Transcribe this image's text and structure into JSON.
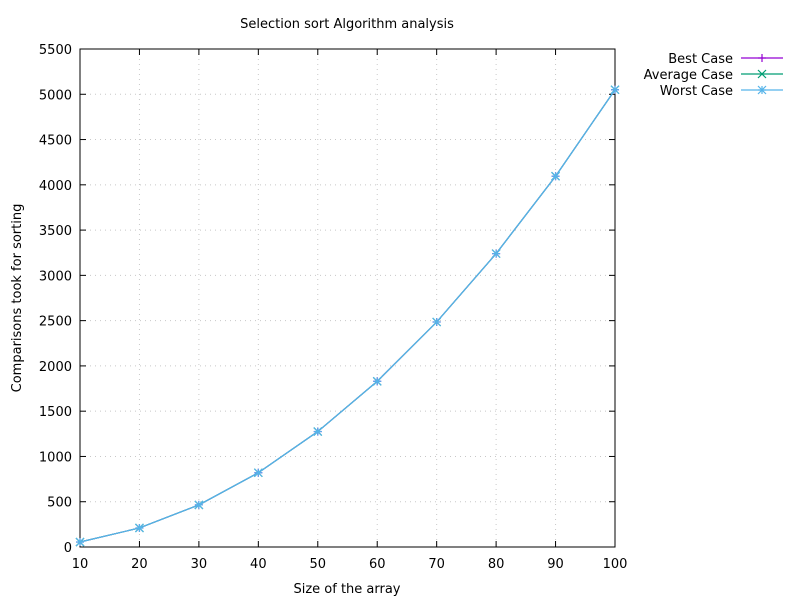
{
  "chart_data": {
    "type": "line",
    "title": "Selection sort Algorithm  analysis",
    "xlabel": "Size of the array",
    "ylabel": "Comparisons took for sorting",
    "x": [
      10,
      20,
      30,
      40,
      50,
      60,
      70,
      80,
      90,
      100
    ],
    "xlim": [
      10,
      100
    ],
    "ylim": [
      0,
      5500
    ],
    "x_ticks": [
      "10",
      "20",
      "30",
      "40",
      "50",
      "60",
      "70",
      "80",
      "90",
      "100"
    ],
    "y_ticks": [
      "0",
      "500",
      "1000",
      "1500",
      "2000",
      "2500",
      "3000",
      "3500",
      "4000",
      "4500",
      "5000",
      "5500"
    ],
    "x_tick_values": [
      10,
      20,
      30,
      40,
      50,
      60,
      70,
      80,
      90,
      100
    ],
    "y_tick_values": [
      0,
      500,
      1000,
      1500,
      2000,
      2500,
      3000,
      3500,
      4000,
      4500,
      5000,
      5500
    ],
    "grid": true,
    "legend_position": "outside-top-right",
    "series": [
      {
        "name": "Best Case",
        "color": "#9400d3",
        "marker": "plus",
        "values": [
          55,
          210,
          465,
          820,
          1275,
          1830,
          2485,
          3240,
          4095,
          5050
        ]
      },
      {
        "name": "Average Case",
        "color": "#009e73",
        "marker": "cross",
        "values": [
          55,
          210,
          465,
          820,
          1275,
          1830,
          2485,
          3240,
          4095,
          5050
        ]
      },
      {
        "name": "Worst Case",
        "color": "#56b4e9",
        "marker": "star",
        "values": [
          55,
          210,
          465,
          820,
          1275,
          1830,
          2485,
          3240,
          4095,
          5050
        ]
      }
    ]
  }
}
